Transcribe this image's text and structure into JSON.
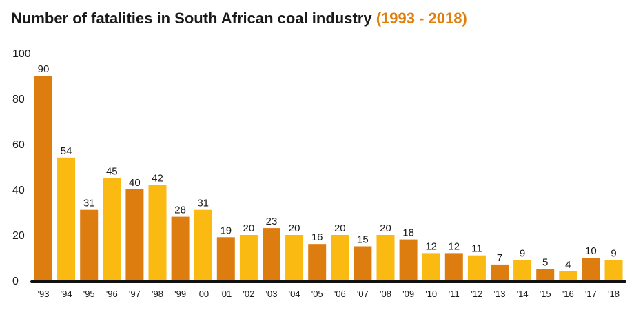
{
  "title": {
    "main": "Number of fatalities in South African coal industry",
    "range": "(1993 - 2018)"
  },
  "chart_data": {
    "type": "bar",
    "title": "Number of fatalities in South African coal industry (1993 - 2018)",
    "xlabel": "",
    "ylabel": "",
    "ylim": [
      0,
      100
    ],
    "yticks": [
      "0",
      "20",
      "40",
      "60",
      "80",
      "100"
    ],
    "categories": [
      "'93",
      "'94",
      "'95",
      "'96",
      "'97",
      "'98",
      "'99",
      "'00",
      "'01",
      "'02",
      "'03",
      "'04",
      "'05",
      "'06",
      "'07",
      "'08",
      "'09",
      "'10",
      "'11",
      "'12",
      "'13",
      "'14",
      "'15",
      "'16",
      "'17",
      "'18"
    ],
    "values": [
      90,
      54,
      31,
      45,
      40,
      42,
      28,
      31,
      19,
      20,
      23,
      20,
      16,
      20,
      15,
      20,
      18,
      12,
      12,
      11,
      7,
      9,
      5,
      4,
      10,
      9
    ],
    "colors": [
      "#dd7d0f",
      "#fbba12"
    ]
  }
}
